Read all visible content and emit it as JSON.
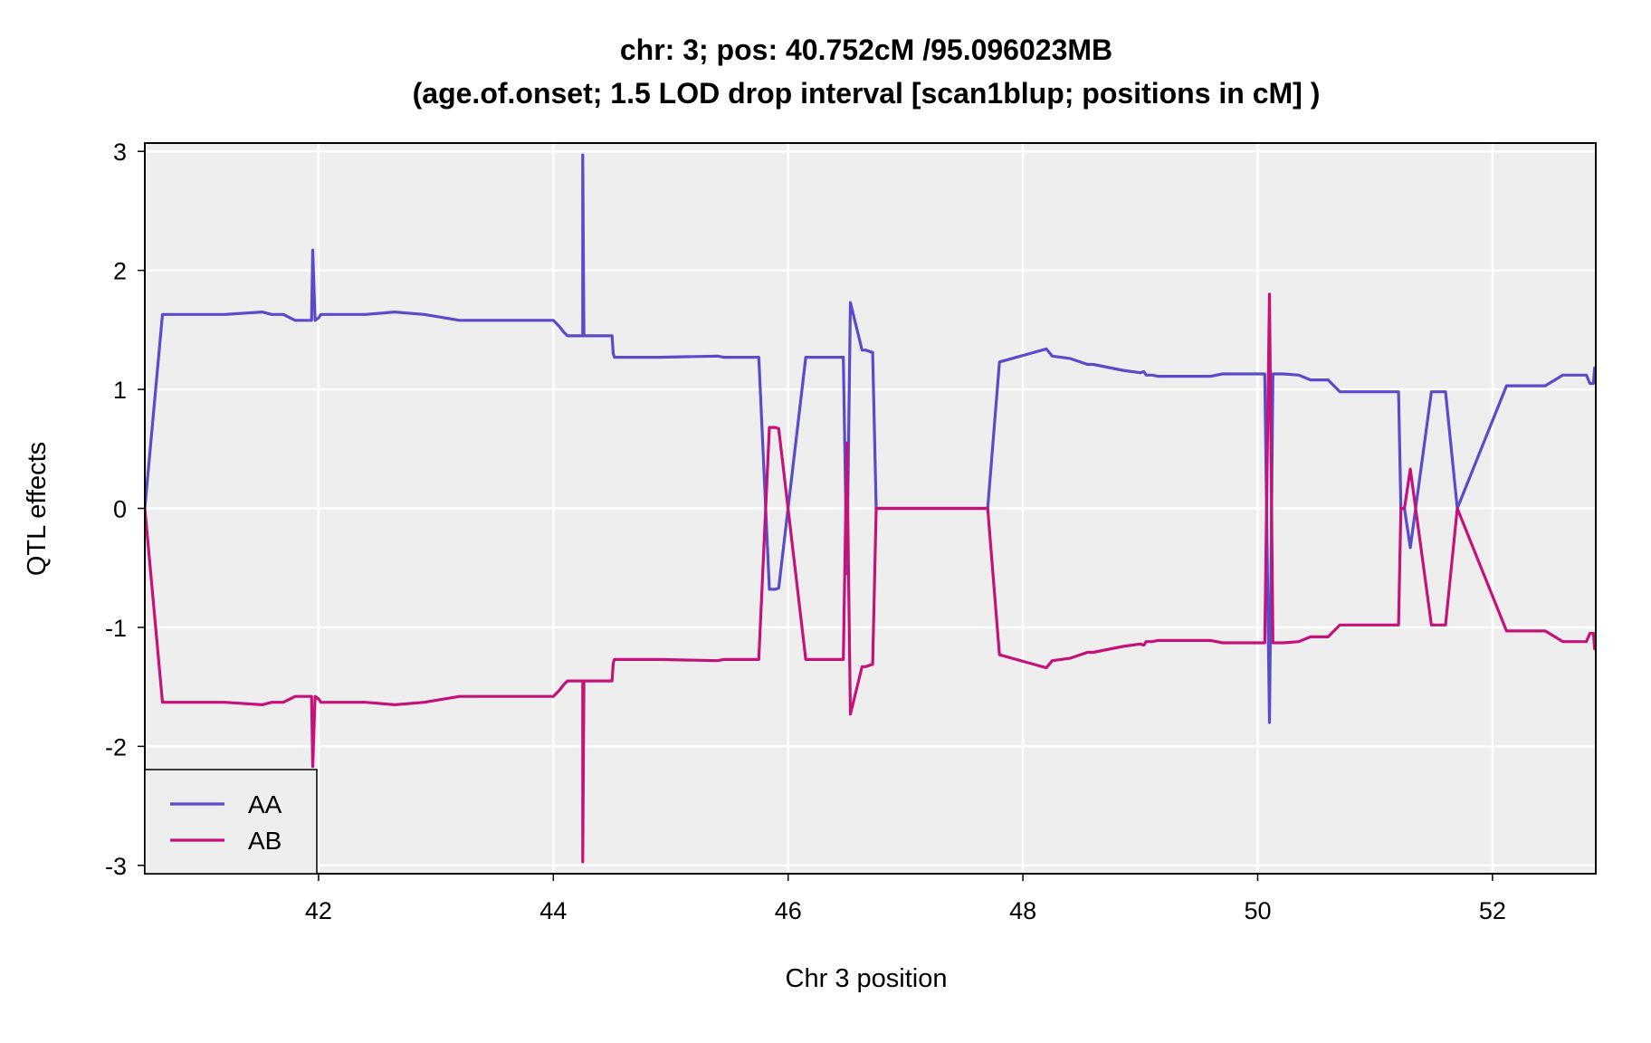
{
  "chart_data": {
    "type": "line",
    "title": "chr: 3; pos: 40.752cM /95.096023MB",
    "subtitle": "(age.of.onset; 1.5 LOD drop interval [scan1blup; positions in cM] )",
    "xlabel": "Chr 3 position",
    "ylabel": "QTL effects",
    "xlim": [
      40.52,
      52.88
    ],
    "ylim": [
      -3.07,
      3.07
    ],
    "xticks": [
      42,
      44,
      46,
      48,
      50,
      52
    ],
    "yticks": [
      -3,
      -2,
      -1,
      0,
      1,
      2,
      3
    ],
    "grid": true,
    "panel_background": "#eeeeee",
    "legend_position": "bottom-left",
    "series": [
      {
        "name": "AA",
        "color": "#5a4bc8",
        "x": [
          40.52,
          40.67,
          41.2,
          41.52,
          41.6,
          41.7,
          41.8,
          41.9,
          41.94,
          41.95,
          41.97,
          42.0,
          42.02,
          42.1,
          42.4,
          42.65,
          42.9,
          43.2,
          43.5,
          43.78,
          43.8,
          43.9,
          44.0,
          44.03,
          44.05,
          44.09,
          44.12,
          44.14,
          44.25,
          44.25,
          44.26,
          44.26,
          44.3,
          44.5,
          44.51,
          44.52,
          44.62,
          44.63,
          44.9,
          45.4,
          45.45,
          45.75,
          45.84,
          45.89,
          45.92,
          46.15,
          46.37,
          46.41,
          46.47,
          46.5,
          46.53,
          46.63,
          46.66,
          46.72,
          46.75,
          46.9,
          47.0,
          47.6,
          47.7,
          47.8,
          48.2,
          48.25,
          48.4,
          48.55,
          48.6,
          48.85,
          49.0,
          49.03,
          49.05,
          49.1,
          49.15,
          49.6,
          49.7,
          50.06,
          50.1,
          50.13,
          50.18,
          50.22,
          50.35,
          50.45,
          50.6,
          50.7,
          51.2,
          51.22,
          51.25,
          51.3,
          51.48,
          51.55,
          51.6,
          51.7,
          52.12,
          52.2,
          52.45,
          52.6,
          52.8,
          52.83,
          52.86,
          52.87,
          52.88
        ],
        "y": [
          0.0,
          1.63,
          1.63,
          1.65,
          1.63,
          1.63,
          1.58,
          1.58,
          1.58,
          2.17,
          1.58,
          1.6,
          1.63,
          1.63,
          1.63,
          1.65,
          1.63,
          1.58,
          1.58,
          1.58,
          1.58,
          1.58,
          1.58,
          1.55,
          1.53,
          1.48,
          1.45,
          1.45,
          1.45,
          2.97,
          1.45,
          1.45,
          1.45,
          1.45,
          1.3,
          1.27,
          1.27,
          1.27,
          1.27,
          1.28,
          1.27,
          1.27,
          -0.68,
          -0.68,
          -0.67,
          1.27,
          1.27,
          1.27,
          1.27,
          -0.55,
          1.73,
          1.33,
          1.33,
          1.31,
          0.0,
          0.0,
          0.0,
          0.0,
          0.0,
          1.23,
          1.34,
          1.28,
          1.26,
          1.21,
          1.21,
          1.16,
          1.14,
          1.15,
          1.12,
          1.12,
          1.11,
          1.11,
          1.13,
          1.13,
          -1.8,
          1.13,
          1.13,
          1.13,
          1.12,
          1.08,
          1.08,
          0.98,
          0.98,
          0.0,
          0.0,
          -0.33,
          0.98,
          0.98,
          0.98,
          0.0,
          1.03,
          1.03,
          1.03,
          1.12,
          1.12,
          1.05,
          1.05,
          1.18,
          1.18
        ]
      },
      {
        "name": "AB",
        "color": "#c4127a",
        "x": [
          40.52,
          40.67,
          41.2,
          41.52,
          41.6,
          41.7,
          41.8,
          41.9,
          41.94,
          41.95,
          41.97,
          42.0,
          42.02,
          42.1,
          42.4,
          42.65,
          42.9,
          43.2,
          43.5,
          43.78,
          43.8,
          43.9,
          44.0,
          44.03,
          44.05,
          44.09,
          44.12,
          44.14,
          44.25,
          44.25,
          44.26,
          44.26,
          44.3,
          44.5,
          44.51,
          44.52,
          44.62,
          44.63,
          44.9,
          45.4,
          45.45,
          45.75,
          45.84,
          45.89,
          45.92,
          46.15,
          46.37,
          46.41,
          46.47,
          46.5,
          46.53,
          46.63,
          46.66,
          46.72,
          46.75,
          46.9,
          47.0,
          47.6,
          47.7,
          47.8,
          48.2,
          48.25,
          48.4,
          48.55,
          48.6,
          48.85,
          49.0,
          49.03,
          49.05,
          49.1,
          49.15,
          49.6,
          49.7,
          50.06,
          50.1,
          50.13,
          50.18,
          50.22,
          50.35,
          50.45,
          50.6,
          50.7,
          51.2,
          51.22,
          51.25,
          51.3,
          51.48,
          51.55,
          51.6,
          51.7,
          52.12,
          52.2,
          52.45,
          52.6,
          52.8,
          52.83,
          52.86,
          52.87,
          52.88
        ],
        "y": [
          0.0,
          -1.63,
          -1.63,
          -1.65,
          -1.63,
          -1.63,
          -1.58,
          -1.58,
          -1.58,
          -2.17,
          -1.58,
          -1.6,
          -1.63,
          -1.63,
          -1.63,
          -1.65,
          -1.63,
          -1.58,
          -1.58,
          -1.58,
          -1.58,
          -1.58,
          -1.58,
          -1.55,
          -1.53,
          -1.48,
          -1.45,
          -1.45,
          -1.45,
          -2.97,
          -1.45,
          -1.45,
          -1.45,
          -1.45,
          -1.3,
          -1.27,
          -1.27,
          -1.27,
          -1.27,
          -1.28,
          -1.27,
          -1.27,
          0.68,
          0.68,
          0.67,
          -1.27,
          -1.27,
          -1.27,
          -1.27,
          0.55,
          -1.73,
          -1.33,
          -1.33,
          -1.31,
          0.0,
          0.0,
          0.0,
          0.0,
          0.0,
          -1.23,
          -1.34,
          -1.28,
          -1.26,
          -1.21,
          -1.21,
          -1.16,
          -1.14,
          -1.15,
          -1.12,
          -1.12,
          -1.11,
          -1.11,
          -1.13,
          -1.13,
          1.8,
          -1.13,
          -1.13,
          -1.13,
          -1.12,
          -1.08,
          -1.08,
          -0.98,
          -0.98,
          0.0,
          0.0,
          0.33,
          -0.98,
          -0.98,
          -0.98,
          0.0,
          -1.03,
          -1.03,
          -1.03,
          -1.12,
          -1.12,
          -1.05,
          -1.05,
          -1.18,
          -1.18
        ]
      }
    ]
  }
}
